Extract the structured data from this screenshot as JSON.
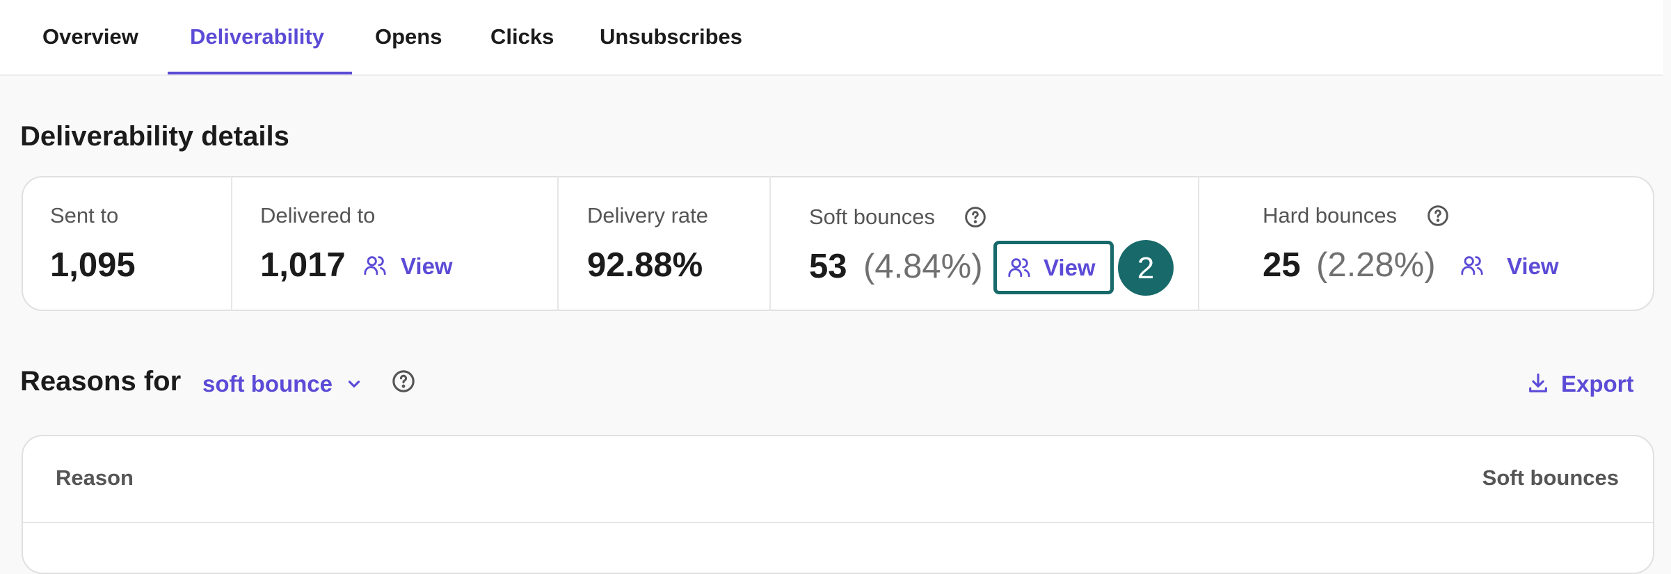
{
  "tabs": [
    "Overview",
    "Deliverability",
    "Opens",
    "Clicks",
    "Unsubscribes"
  ],
  "section_title": "Deliverability details",
  "stats": [
    {
      "label": "Sent to",
      "value": "1,095"
    },
    {
      "label": "Delivered to",
      "value": "1,017",
      "action": "View"
    },
    {
      "label": "Delivery rate",
      "value": "92.88%"
    },
    {
      "label": "Soft bounces",
      "value": "53",
      "percent": "(4.84%)",
      "action": "View"
    },
    {
      "label": "Hard bounces",
      "value": "25",
      "percent": "(2.28%)",
      "action": "View"
    }
  ],
  "annotation": "2",
  "reasons": {
    "title": "Reasons for",
    "filter": "soft bounce",
    "export": "Export",
    "table": {
      "columns": [
        "Reason",
        "Soft bounces"
      ]
    }
  }
}
